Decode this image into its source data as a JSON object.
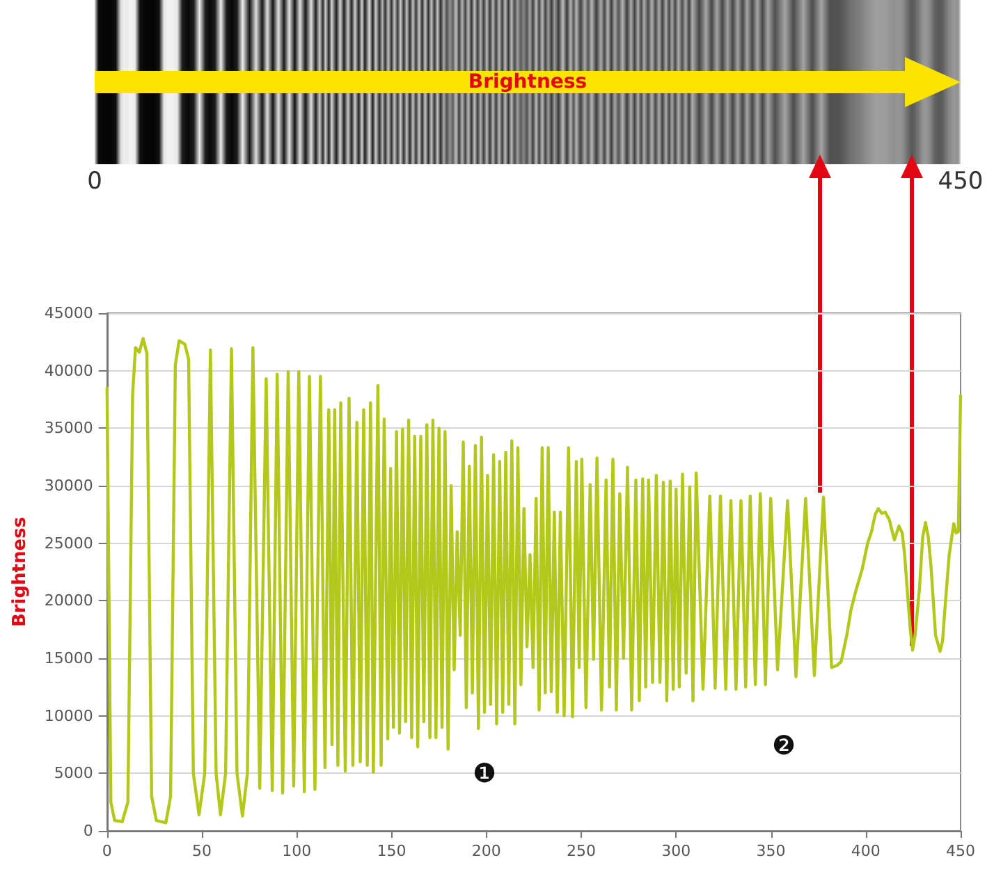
{
  "chart_data": {
    "type": "line",
    "ylabel": "Brightness",
    "x2label": "Brightness",
    "annotations": [
      "❶",
      "❷"
    ],
    "x": [
      0,
      2,
      4,
      8,
      11,
      13.5,
      15,
      17,
      19,
      21,
      23.5,
      26,
      31,
      33.5,
      36,
      38,
      41,
      43,
      45.5,
      48.5,
      51.5,
      54.5,
      57.5,
      59.8,
      62.5,
      65.6,
      68.5,
      71.4,
      74,
      76.9,
      80.5,
      83.9,
      87.1,
      89.7,
      92.6,
      95.5,
      98.4,
      101.1,
      104,
      106.7,
      109.6,
      112.5,
      114.9,
      116.9,
      118.6,
      120,
      121.7,
      123.2,
      125.6,
      127.6,
      129.6,
      131.7,
      133.5,
      135.3,
      137.2,
      138.9,
      140.4,
      142.8,
      144.5,
      146.1,
      148,
      149.5,
      151,
      152.6,
      154.2,
      155.8,
      157.4,
      159,
      160.6,
      162.2,
      163.8,
      165.4,
      167,
      168.6,
      170.2,
      171.8,
      173.4,
      175,
      176.6,
      178.2,
      179.8,
      181.4,
      183,
      184.6,
      186.2,
      187.8,
      189.4,
      191,
      192.6,
      194.2,
      195.8,
      197.4,
      199,
      200.6,
      202.2,
      203.8,
      205.4,
      207,
      208.6,
      210.2,
      211.8,
      213.4,
      215,
      216.6,
      218.2,
      219.8,
      221.4,
      223,
      224.6,
      226.2,
      227.8,
      229.4,
      231,
      232.6,
      234.2,
      235.8,
      237.4,
      239,
      241,
      243.3,
      245.4,
      247.4,
      248.9,
      250.3,
      252.5,
      254.7,
      256.5,
      258.3,
      260.7,
      263.1,
      264.9,
      266.7,
      268.5,
      270.3,
      272.3,
      274.4,
      276.6,
      278.8,
      280.6,
      282.4,
      284,
      285.5,
      287.6,
      289.6,
      291.5,
      293.3,
      295.1,
      296.9,
      298.5,
      300,
      301.7,
      303.4,
      305.3,
      307.2,
      308.9,
      310.6,
      314.2,
      317.8,
      320.6,
      323.4,
      326.2,
      328.9,
      331.6,
      334.2,
      336.7,
      339.1,
      341.8,
      344.4,
      347.1,
      349.9,
      353.5,
      358.8,
      363.2,
      368.3,
      372.9,
      377.7,
      382,
      385,
      387,
      390,
      392.2,
      395,
      398.2,
      401,
      403,
      405,
      406.6,
      408.5,
      410.3,
      412.5,
      414,
      415.1,
      417.5,
      419.2,
      420.5,
      422.3,
      423.5,
      424.7,
      426,
      428.3,
      430,
      431.5,
      433,
      434.4,
      436.8,
      439.2,
      440.5,
      441.6,
      444,
      446.4,
      447.6,
      448.8,
      450
    ],
    "series": [
      {
        "color": "#b4c81c",
        "values": [
          38500,
          2500,
          900,
          800,
          2500,
          38000,
          42000,
          41600,
          42800,
          41500,
          3000,
          900,
          700,
          3000,
          40500,
          42600,
          42300,
          41000,
          5000,
          1400,
          5000,
          41800,
          5000,
          1400,
          5000,
          41900,
          5000,
          1300,
          5000,
          42000,
          3700,
          39300,
          3500,
          39700,
          3300,
          39900,
          3900,
          39900,
          3400,
          39500,
          3600,
          39500,
          5500,
          36600,
          7500,
          36600,
          5700,
          37200,
          5200,
          37600,
          5700,
          35500,
          6000,
          36600,
          5700,
          37200,
          5100,
          38700,
          5700,
          35800,
          8000,
          31500,
          9000,
          34700,
          8500,
          34900,
          9500,
          35700,
          8100,
          34300,
          7300,
          34300,
          9500,
          35300,
          8100,
          35700,
          8100,
          35000,
          9000,
          34700,
          7100,
          30000,
          14000,
          26000,
          17000,
          33800,
          10700,
          31700,
          12000,
          33500,
          8900,
          34200,
          10300,
          30900,
          11000,
          32700,
          9300,
          32100,
          10300,
          32900,
          11000,
          33900,
          9300,
          33300,
          12700,
          28000,
          16000,
          24000,
          14200,
          28900,
          10500,
          33300,
          12000,
          33300,
          12100,
          27700,
          10300,
          27700,
          10000,
          33300,
          9900,
          32100,
          14200,
          32300,
          10700,
          30100,
          14900,
          32400,
          10500,
          30500,
          12500,
          32300,
          10500,
          29300,
          15000,
          31600,
          10500,
          30500,
          11300,
          30600,
          12500,
          30500,
          12900,
          30900,
          12900,
          30300,
          11300,
          30400,
          12300,
          29700,
          12500,
          31000,
          13700,
          29900,
          11300,
          31100,
          12300,
          29100,
          12400,
          29100,
          12300,
          28700,
          12300,
          28700,
          12500,
          29100,
          12700,
          29300,
          12700,
          28900,
          14000,
          28700,
          13400,
          28900,
          13500,
          29000,
          14200,
          14400,
          14700,
          17000,
          19200,
          21000,
          22800,
          25000,
          26000,
          27500,
          28000,
          27600,
          27700,
          27000,
          26000,
          25300,
          26500,
          25900,
          24000,
          20000,
          17500,
          15700,
          17000,
          21000,
          25500,
          26800,
          25500,
          23000,
          17000,
          15600,
          16500,
          19000,
          24000,
          26700,
          25900,
          26000,
          37800
        ]
      }
    ],
    "xlim": [
      0,
      450
    ],
    "xticks": [
      0,
      50,
      100,
      150,
      200,
      250,
      300,
      350,
      400,
      450
    ],
    "ylim": [
      0,
      45000
    ],
    "yticks": [
      0,
      5000,
      10000,
      15000,
      20000,
      25000,
      30000,
      35000,
      40000,
      45000
    ],
    "x2lim": [
      0,
      450
    ],
    "x2ticks": [
      0,
      450
    ],
    "grid": "y",
    "marker": "none"
  }
}
